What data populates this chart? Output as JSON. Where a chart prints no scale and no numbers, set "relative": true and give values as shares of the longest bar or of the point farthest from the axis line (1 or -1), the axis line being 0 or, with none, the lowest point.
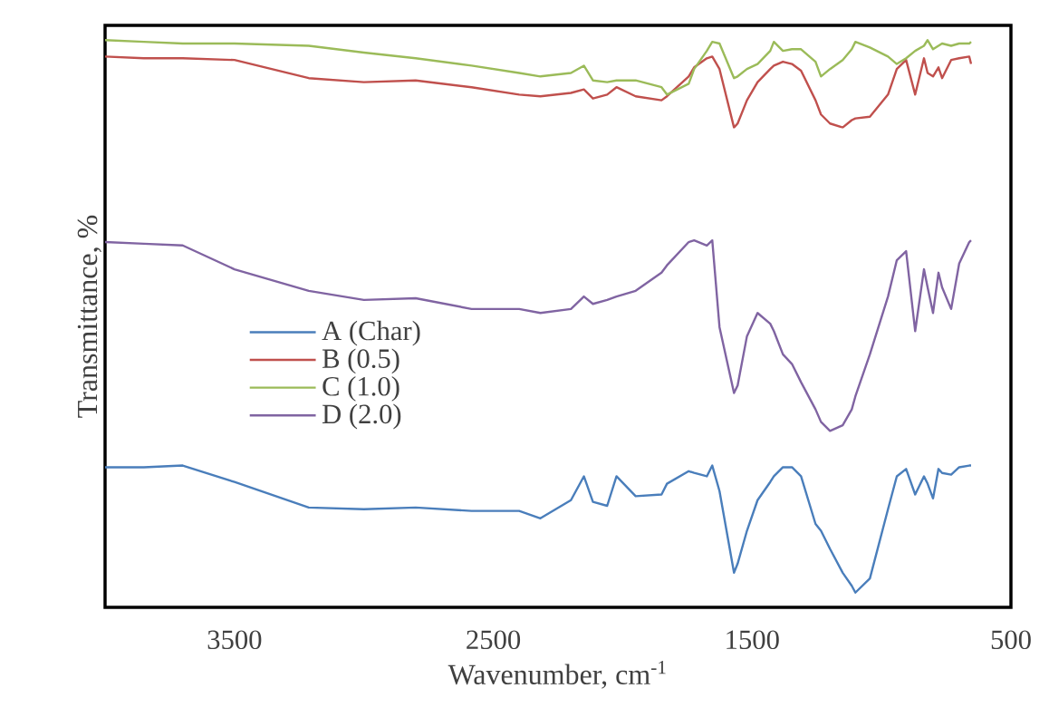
{
  "chart_data": {
    "type": "line",
    "relative": true,
    "xlabel": "Wavenumber, cm$^{-1}$",
    "ylabel": "Transmittance, %",
    "xlim": [
      4000,
      500
    ],
    "xticks": [
      3500,
      2500,
      1500,
      500
    ],
    "legend": "left",
    "x": [
      4000,
      3850,
      3700,
      3500,
      3213,
      3000,
      2800,
      2584,
      2400,
      2318,
      2200,
      2150,
      2115,
      2060,
      2024,
      1950,
      1850,
      1829,
      1745,
      1724,
      1675,
      1654,
      1626,
      1570,
      1556,
      1520,
      1479,
      1430,
      1416,
      1381,
      1346,
      1311,
      1255,
      1234,
      1199,
      1150,
      1115,
      1101,
      1045,
      975,
      941,
      905,
      870,
      836,
      822,
      801,
      780,
      766,
      731,
      700,
      661,
      654
    ],
    "series": [
      {
        "name": "A (Char)",
        "color": "#4a7ebb",
        "values": [
          0.247,
          0.247,
          0.25,
          0.221,
          0.176,
          0.173,
          0.176,
          0.17,
          0.17,
          0.157,
          0.189,
          0.231,
          0.186,
          0.179,
          0.231,
          0.196,
          0.199,
          0.218,
          0.24,
          0.237,
          0.231,
          0.25,
          0.205,
          0.061,
          0.077,
          0.135,
          0.189,
          0.221,
          0.231,
          0.247,
          0.247,
          0.231,
          0.147,
          0.135,
          0.103,
          0.061,
          0.038,
          0.026,
          0.051,
          0.173,
          0.231,
          0.244,
          0.199,
          0.231,
          0.218,
          0.192,
          0.244,
          0.237,
          0.234,
          0.247,
          0.25,
          0.25
        ]
      },
      {
        "name": "B (0.5)",
        "color": "#c0504d",
        "values": [
          0.971,
          0.968,
          0.968,
          0.965,
          0.933,
          0.926,
          0.929,
          0.917,
          0.904,
          0.901,
          0.907,
          0.913,
          0.897,
          0.904,
          0.917,
          0.901,
          0.894,
          0.901,
          0.936,
          0.952,
          0.968,
          0.971,
          0.949,
          0.846,
          0.853,
          0.894,
          0.926,
          0.949,
          0.955,
          0.962,
          0.958,
          0.946,
          0.894,
          0.869,
          0.853,
          0.846,
          0.859,
          0.862,
          0.865,
          0.904,
          0.949,
          0.965,
          0.904,
          0.968,
          0.942,
          0.936,
          0.952,
          0.933,
          0.965,
          0.968,
          0.971,
          0.958
        ]
      },
      {
        "name": "C (1.0)",
        "color": "#9bbb59",
        "values": [
          1.0,
          0.997,
          0.994,
          0.994,
          0.99,
          0.978,
          0.968,
          0.955,
          0.942,
          0.936,
          0.942,
          0.955,
          0.929,
          0.926,
          0.929,
          0.929,
          0.917,
          0.904,
          0.923,
          0.949,
          0.981,
          0.997,
          0.994,
          0.933,
          0.936,
          0.949,
          0.958,
          0.981,
          0.997,
          0.981,
          0.984,
          0.984,
          0.962,
          0.936,
          0.949,
          0.965,
          0.984,
          0.997,
          0.987,
          0.971,
          0.958,
          0.968,
          0.981,
          0.99,
          1.0,
          0.984,
          0.99,
          0.994,
          0.99,
          0.994,
          0.994,
          0.997
        ]
      },
      {
        "name": "D (2.0)",
        "color": "#8064a2",
        "values": [
          0.644,
          0.641,
          0.638,
          0.596,
          0.558,
          0.542,
          0.545,
          0.526,
          0.526,
          0.519,
          0.526,
          0.548,
          0.535,
          0.542,
          0.548,
          0.558,
          0.59,
          0.603,
          0.644,
          0.647,
          0.638,
          0.647,
          0.494,
          0.378,
          0.391,
          0.478,
          0.519,
          0.5,
          0.487,
          0.446,
          0.429,
          0.397,
          0.349,
          0.327,
          0.311,
          0.321,
          0.349,
          0.372,
          0.446,
          0.548,
          0.612,
          0.628,
          0.487,
          0.596,
          0.564,
          0.519,
          0.59,
          0.564,
          0.526,
          0.606,
          0.644,
          0.647
        ]
      }
    ]
  }
}
